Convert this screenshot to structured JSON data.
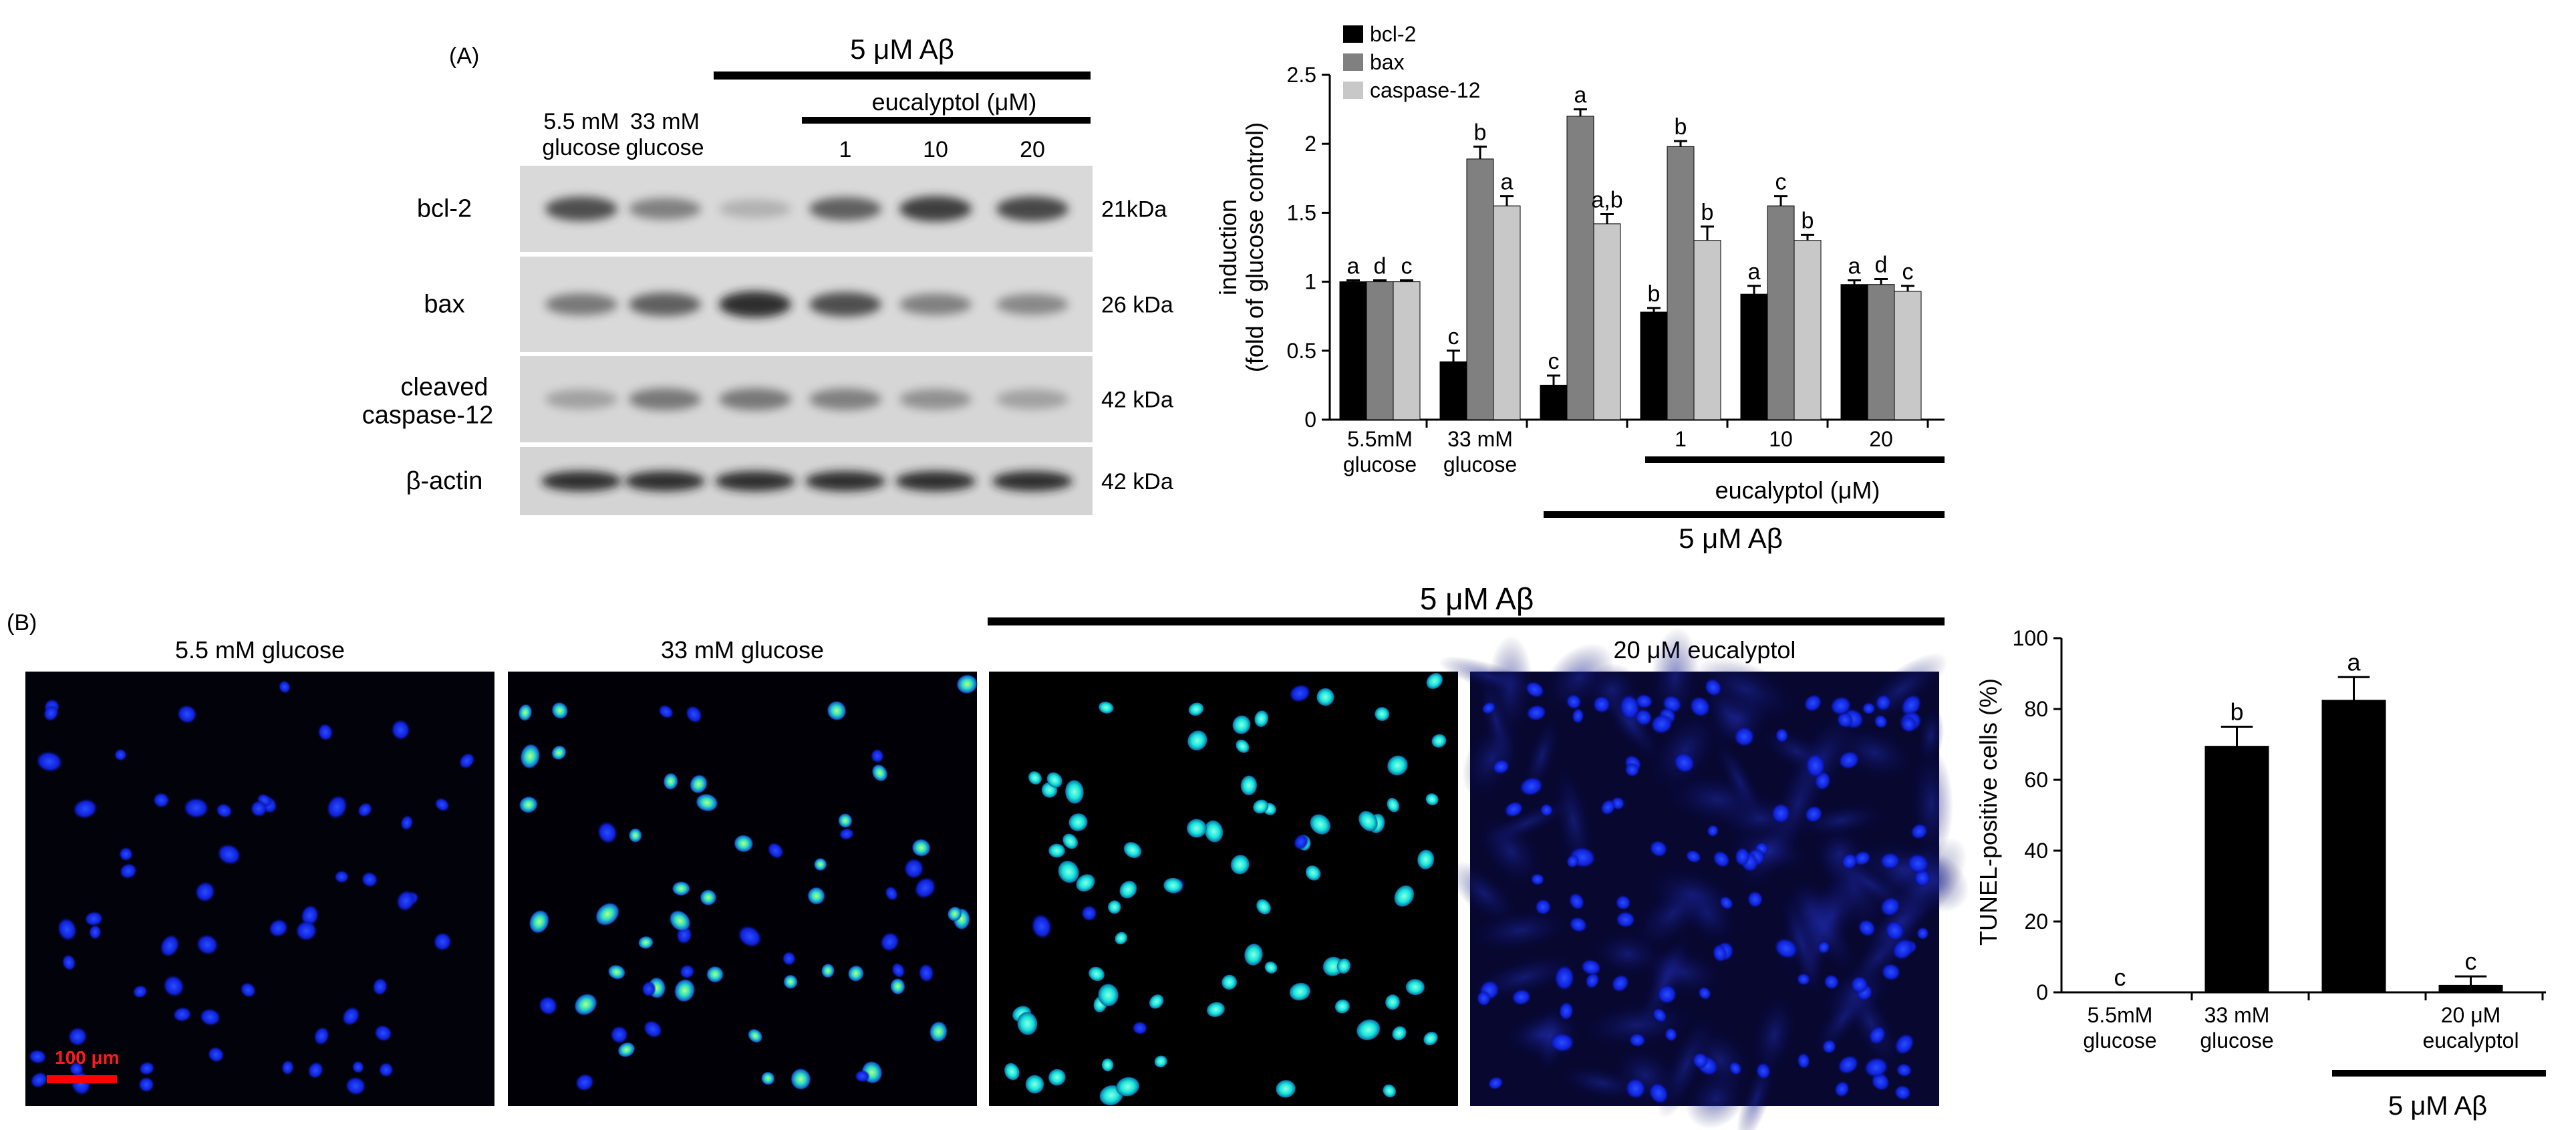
{
  "panel_a": {
    "label": "(A)",
    "blot": {
      "abeta_label": "5 μM Aβ",
      "eucalyptol_label": "eucalyptol (μM)",
      "lanes": [
        {
          "line1": "5.5 mM",
          "line2": "glucose"
        },
        {
          "line1": "33 mM",
          "line2": "glucose"
        },
        {
          "line1": "",
          "line2": ""
        },
        {
          "line1": "1",
          "line2": ""
        },
        {
          "line1": "10",
          "line2": ""
        },
        {
          "line1": "20",
          "line2": ""
        }
      ],
      "rows": [
        {
          "name": "bcl-2",
          "name2": "",
          "kda": "21kDa"
        },
        {
          "name": "bax",
          "name2": "",
          "kda": "26 kDa"
        },
        {
          "name": "cleaved",
          "name2": "caspase-12",
          "kda": "42 kDa"
        },
        {
          "name": "β-actin",
          "name2": "",
          "kda": "42 kDa"
        }
      ],
      "band_intensity": [
        [
          0.75,
          0.45,
          0.15,
          0.65,
          0.85,
          0.8
        ],
        [
          0.5,
          0.65,
          0.95,
          0.75,
          0.45,
          0.4
        ],
        [
          0.25,
          0.5,
          0.5,
          0.45,
          0.35,
          0.25
        ],
        [
          0.95,
          0.95,
          0.95,
          0.95,
          0.95,
          0.95
        ]
      ]
    }
  },
  "chart_data": [
    {
      "type": "bar",
      "ylabel": "induction",
      "ylabel2": "(fold of glucose control)",
      "ylim": [
        0,
        2.5
      ],
      "yticks": [
        "0",
        "0.5",
        "1",
        "1.5",
        "2",
        "2.5"
      ],
      "categories": [
        {
          "line1": "5.5mM",
          "line2": "glucose"
        },
        {
          "line1": "33 mM",
          "line2": "glucose"
        },
        {
          "line1": "",
          "line2": ""
        },
        {
          "line1": "1",
          "line2": ""
        },
        {
          "line1": "10",
          "line2": ""
        },
        {
          "line1": "20",
          "line2": ""
        }
      ],
      "series": [
        {
          "name": "bcl-2",
          "color": "#000000",
          "values": [
            1.0,
            0.42,
            0.25,
            0.78,
            0.91,
            0.98
          ],
          "errors": [
            0.01,
            0.08,
            0.07,
            0.03,
            0.06,
            0.03
          ],
          "letters": [
            "a",
            "c",
            "c",
            "b",
            "a",
            "a"
          ]
        },
        {
          "name": "bax",
          "color": "#808080",
          "values": [
            1.0,
            1.89,
            2.2,
            1.98,
            1.55,
            0.98
          ],
          "errors": [
            0.01,
            0.09,
            0.05,
            0.04,
            0.07,
            0.04
          ],
          "letters": [
            "d",
            "b",
            "a",
            "b",
            "c",
            "d"
          ]
        },
        {
          "name": "caspase-12",
          "color": "#c8c8c8",
          "values": [
            1.0,
            1.55,
            1.42,
            1.3,
            1.3,
            0.93
          ],
          "errors": [
            0.01,
            0.07,
            0.07,
            0.1,
            0.04,
            0.04
          ],
          "letters": [
            "c",
            "a",
            "a,b",
            "b",
            "b",
            "c"
          ]
        }
      ],
      "group_labels": {
        "eucalyptol": "eucalyptol (μM)",
        "abeta": "5 μM Aβ"
      },
      "legend": "top-left"
    },
    {
      "type": "bar",
      "ylabel": "TUNEL-positive  cells (%)",
      "ylim": [
        0,
        100
      ],
      "yticks": [
        "0",
        "20",
        "40",
        "60",
        "80",
        "100"
      ],
      "categories": [
        {
          "line1": "5.5mM",
          "line2": "glucose"
        },
        {
          "line1": "33 mM",
          "line2": "glucose"
        },
        {
          "line1": "",
          "line2": ""
        },
        {
          "line1": "20 μM",
          "line2": "eucalyptol"
        }
      ],
      "series": [
        {
          "color": "#000000",
          "values": [
            0,
            69.5,
            82.5,
            2.0
          ],
          "errors": [
            0,
            5.5,
            6.5,
            2.5
          ],
          "letters": [
            "c",
            "b",
            "a",
            "c"
          ]
        }
      ],
      "group_labels": {
        "abeta": "5 μM Aβ"
      }
    }
  ],
  "panel_b": {
    "label": "(B)",
    "abeta_label": "5 μM Aβ",
    "scale_bar": "100 μm",
    "images": [
      {
        "title": "5.5 mM glucose",
        "seed": 11,
        "cells": 60,
        "bright": 0,
        "bg": "#02020a"
      },
      {
        "title": "33 mM glucose",
        "seed": 23,
        "cells": 62,
        "bright": 0.65,
        "bg": "#000006"
      },
      {
        "title": "",
        "seed": 37,
        "cells": 75,
        "bright": 0.92,
        "bg": "#000000"
      },
      {
        "title": "20 μM  eucalyptol",
        "seed": 51,
        "cells": 110,
        "bright": 0,
        "bg": "#070730"
      }
    ]
  }
}
